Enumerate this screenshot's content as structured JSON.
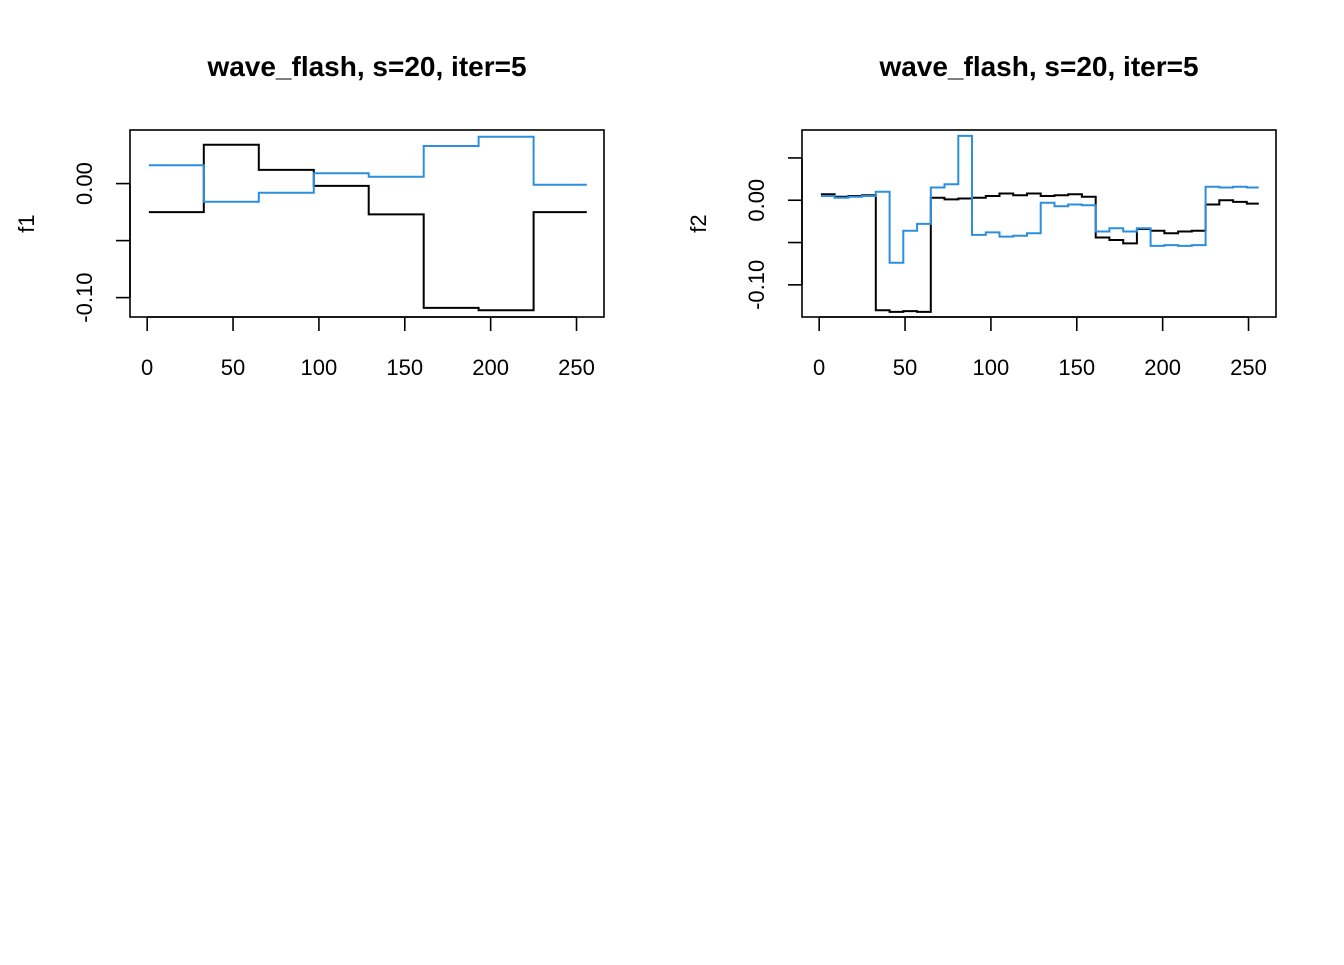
{
  "chart_data": [
    {
      "type": "line",
      "step": true,
      "title": "wave_flash, s=20, iter=5",
      "xlabel": "",
      "ylabel": "f1",
      "xlim": [
        -10,
        266
      ],
      "ylim": [
        -0.117,
        0.047
      ],
      "xticks": [
        0,
        50,
        100,
        150,
        200,
        250
      ],
      "yticks": [
        {
          "value": 0.0,
          "label": "0.00"
        },
        {
          "value": -0.05,
          "label": ""
        },
        {
          "value": -0.1,
          "label": "-0.10"
        }
      ],
      "series": [
        {
          "color": "#000000",
          "x": [
            1,
            33,
            65,
            97,
            129,
            161,
            193,
            225,
            256
          ],
          "y": [
            -0.025,
            0.034,
            0.012,
            -0.002,
            -0.027,
            -0.109,
            -0.111,
            -0.025,
            -0.025
          ]
        },
        {
          "color": "#2b8fde",
          "x": [
            1,
            33,
            65,
            97,
            129,
            161,
            193,
            225,
            256
          ],
          "y": [
            0.016,
            -0.016,
            -0.008,
            0.009,
            0.006,
            0.033,
            0.041,
            -0.001,
            -0.001
          ]
        }
      ]
    },
    {
      "type": "line",
      "step": true,
      "title": "wave_flash, s=20, iter=5",
      "xlabel": "",
      "ylabel": "f2",
      "xlim": [
        -10,
        266
      ],
      "ylim": [
        -0.138,
        0.083
      ],
      "xticks": [
        0,
        50,
        100,
        150,
        200,
        250
      ],
      "yticks": [
        {
          "value": 0.05,
          "label": ""
        },
        {
          "value": 0.0,
          "label": "0.00"
        },
        {
          "value": -0.05,
          "label": ""
        },
        {
          "value": -0.1,
          "label": "-0.10"
        }
      ],
      "series": [
        {
          "color": "#000000",
          "x": [
            1,
            9,
            17,
            25,
            33,
            41,
            49,
            57,
            65,
            73,
            81,
            89,
            97,
            105,
            113,
            121,
            129,
            137,
            145,
            153,
            161,
            169,
            177,
            185,
            193,
            201,
            209,
            217,
            225,
            233,
            241,
            249,
            256
          ],
          "y": [
            0.007,
            0.004,
            0.005,
            0.006,
            -0.13,
            -0.132,
            -0.131,
            -0.132,
            0.003,
            0.001,
            0.002,
            0.003,
            0.005,
            0.008,
            0.006,
            0.008,
            0.005,
            0.006,
            0.007,
            0.004,
            -0.044,
            -0.047,
            -0.051,
            -0.034,
            -0.036,
            -0.039,
            -0.037,
            -0.036,
            -0.005,
            0.0,
            -0.002,
            -0.004,
            -0.004
          ]
        },
        {
          "color": "#2b8fde",
          "x": [
            1,
            9,
            17,
            25,
            33,
            41,
            49,
            57,
            65,
            73,
            81,
            89,
            97,
            105,
            113,
            121,
            129,
            137,
            145,
            153,
            161,
            169,
            177,
            185,
            193,
            201,
            209,
            217,
            225,
            233,
            241,
            249,
            256
          ],
          "y": [
            0.005,
            0.003,
            0.004,
            0.005,
            0.01,
            -0.074,
            -0.036,
            -0.028,
            0.015,
            0.019,
            0.076,
            -0.041,
            -0.038,
            -0.043,
            -0.042,
            -0.039,
            -0.003,
            -0.007,
            -0.005,
            -0.006,
            -0.037,
            -0.033,
            -0.037,
            -0.033,
            -0.054,
            -0.053,
            -0.054,
            -0.053,
            0.016,
            0.015,
            0.016,
            0.015,
            0.015
          ]
        }
      ]
    }
  ]
}
